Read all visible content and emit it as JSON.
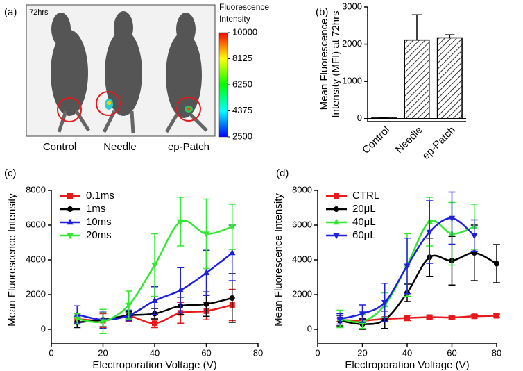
{
  "panel_labels": [
    "(a)",
    "(b)",
    "(c)",
    "(d)"
  ],
  "image_panel": {
    "annotation": "72hrs",
    "labels": [
      "Control",
      "Needle",
      "ep-Patch"
    ],
    "colorbar_title": [
      "Fluorescence",
      "Intensity"
    ],
    "colorbar_lim": [
      2500,
      10000
    ],
    "colorbar_ticks": [
      10000,
      8125,
      6250,
      4375,
      2500
    ],
    "colorbar_colors": [
      "#0000ff",
      "#00ffff",
      "#00ff00",
      "#ffff00",
      "#ff0000"
    ]
  },
  "chart_data": [
    {
      "type": "bar",
      "ylabel": [
        "Mean Fluorescence",
        "Intensity (MFI) at 72hrs"
      ],
      "categories": [
        "Control",
        "Needle",
        "ep-Patch"
      ],
      "values": [
        15,
        2110,
        2170
      ],
      "errors": [
        10,
        680,
        80
      ],
      "ylim": [
        -80,
        3000
      ],
      "yticks": [
        0,
        1000,
        2000,
        3000
      ],
      "hatch": true,
      "color": "#000000"
    },
    {
      "type": "line",
      "xlabel": "Electroporation Voltage (V)",
      "ylabel": "Mean Fluorescence Intensity",
      "x": [
        10,
        20,
        30,
        40,
        50,
        60,
        70
      ],
      "xlim": [
        0,
        80
      ],
      "xticks": [
        0,
        20,
        40,
        60,
        80
      ],
      "ylim": [
        -800,
        8000
      ],
      "yticks": [
        0,
        2000,
        4000,
        6000,
        8000
      ],
      "legend": "upper left",
      "series": [
        {
          "name": "0.1ms",
          "color": "#e8191b",
          "marker": "square",
          "values": [
            600,
            500,
            750,
            350,
            950,
            1050,
            1400
          ],
          "errors": [
            300,
            400,
            300,
            250,
            600,
            500,
            900
          ]
        },
        {
          "name": "1ms",
          "color": "#000000",
          "marker": "circle",
          "values": [
            400,
            550,
            800,
            900,
            1350,
            1450,
            1800
          ],
          "errors": [
            300,
            400,
            200,
            300,
            500,
            700,
            1400
          ]
        },
        {
          "name": "10ms",
          "color": "#1f1fe0",
          "marker": "triangle-up",
          "values": [
            850,
            550,
            800,
            1650,
            2250,
            3250,
            4400
          ],
          "errors": [
            500,
            500,
            300,
            800,
            1300,
            1300,
            1600
          ]
        },
        {
          "name": "20ms",
          "color": "#33e833",
          "marker": "triangle-down",
          "values": [
            600,
            450,
            1400,
            3700,
            6200,
            5500,
            5900
          ],
          "errors": [
            300,
            700,
            800,
            1800,
            1400,
            2000,
            1300
          ]
        }
      ]
    },
    {
      "type": "line",
      "xlabel": "Electroporation Voltage (V)",
      "ylabel": "Mean Fluorescence Intensity",
      "x": [
        10,
        20,
        30,
        40,
        50,
        60,
        70,
        80
      ],
      "xlim": [
        0,
        80
      ],
      "xticks": [
        0,
        20,
        40,
        60,
        80
      ],
      "ylim": [
        -800,
        8000
      ],
      "yticks": [
        0,
        2000,
        4000,
        6000,
        8000
      ],
      "legend": "upper left",
      "series": [
        {
          "name": "CTRL",
          "color": "#e8191b",
          "marker": "square",
          "values": [
            550,
            500,
            600,
            650,
            700,
            680,
            750,
            780
          ],
          "errors": [
            100,
            100,
            100,
            150,
            100,
            80,
            100,
            100
          ]
        },
        {
          "name": "20μL",
          "color": "#000000",
          "marker": "circle",
          "values": [
            500,
            300,
            550,
            2100,
            4150,
            3950,
            4400,
            3780
          ],
          "errors": [
            300,
            300,
            500,
            500,
            1100,
            1400,
            1600,
            1100
          ]
        },
        {
          "name": "40μL",
          "color": "#33e833",
          "marker": "triangle-up",
          "values": [
            600,
            450,
            1400,
            3700,
            6200,
            5500,
            5900,
            null
          ],
          "errors": [
            500,
            400,
            700,
            1800,
            1400,
            1800,
            1300,
            null
          ]
        },
        {
          "name": "60μL",
          "color": "#1f1fe0",
          "marker": "triangle-down",
          "values": [
            600,
            900,
            1550,
            3650,
            5600,
            6400,
            5400,
            null
          ],
          "errors": [
            300,
            500,
            1100,
            1600,
            1800,
            1500,
            900,
            null
          ]
        }
      ]
    }
  ]
}
